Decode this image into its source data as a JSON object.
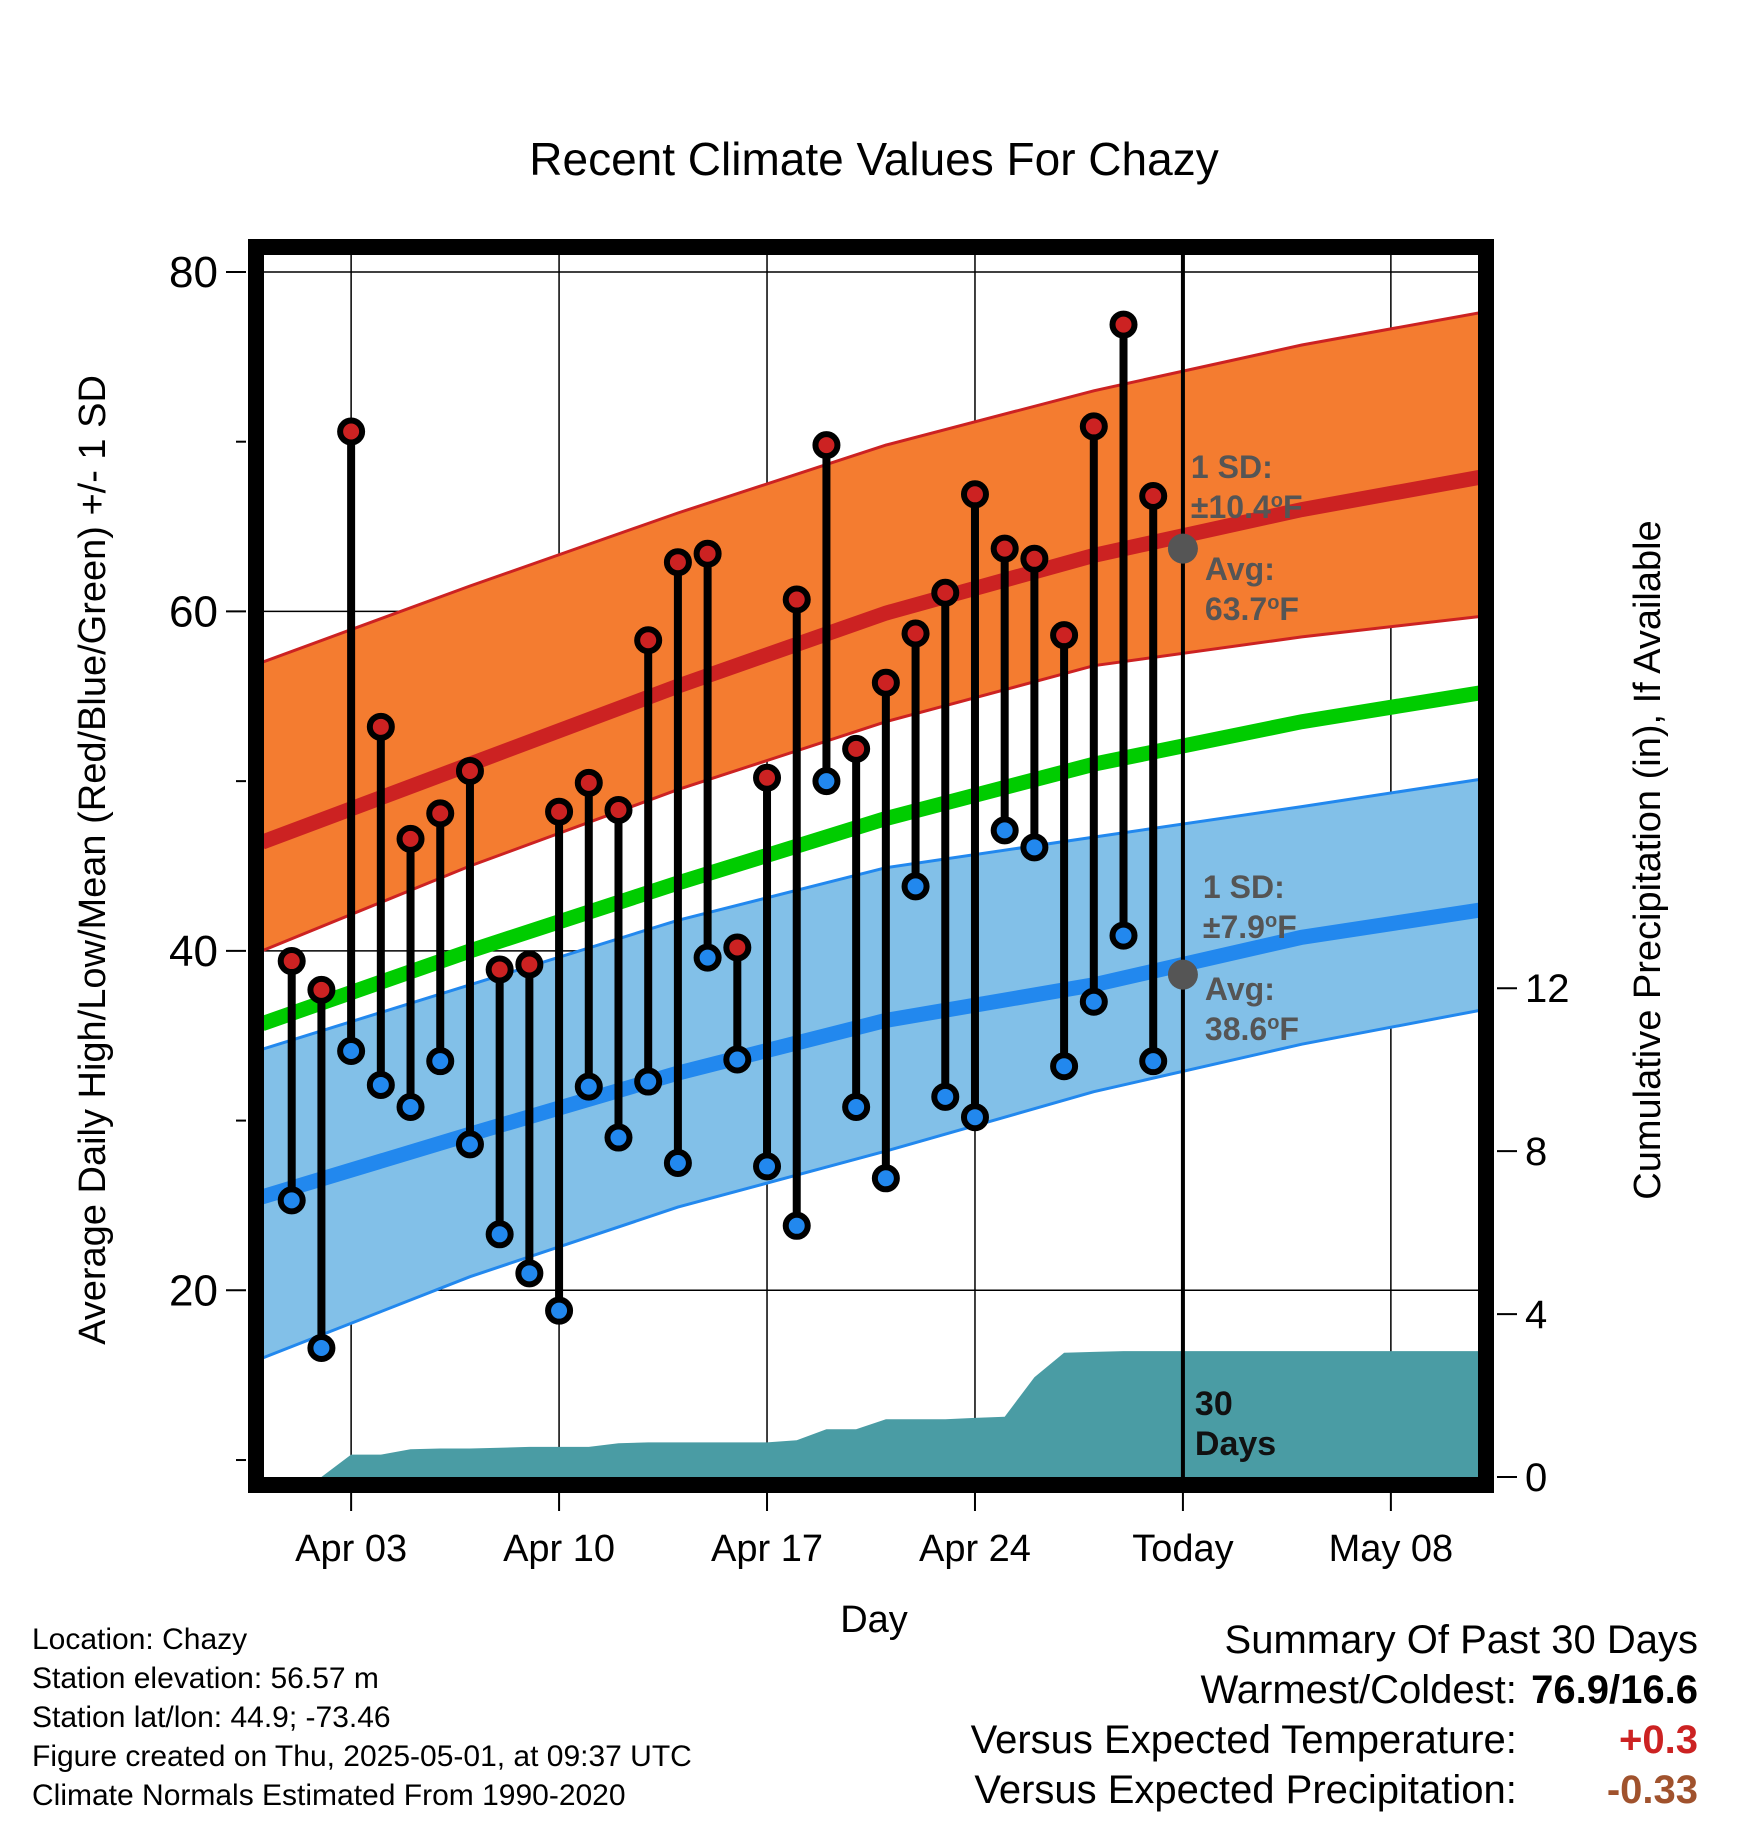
{
  "chart_data": {
    "type": "line",
    "title": "Recent Climate Values For Chazy",
    "xlabel": "Day",
    "ylabel_left": "Average Daily High/Low/Mean (Red/Blue/Green) +/- 1 SD",
    "ylabel_right": "Cumulative Precipitation (in), If Available",
    "x_range": [
      "2025-03-31",
      "2025-05-11"
    ],
    "ylim_left": [
      9,
      81
    ],
    "ylim_right": [
      0,
      30
    ],
    "grid": true,
    "x_ticks": [
      {
        "date": "2025-04-03",
        "label": "Apr 03"
      },
      {
        "date": "2025-04-10",
        "label": "Apr 10"
      },
      {
        "date": "2025-04-17",
        "label": "Apr 17"
      },
      {
        "date": "2025-04-24",
        "label": "Apr 24"
      },
      {
        "date": "2025-05-01",
        "label": "Today"
      },
      {
        "date": "2025-05-08",
        "label": "May 08"
      }
    ],
    "y_ticks_left": [
      20,
      40,
      60,
      80
    ],
    "y_ticks_right": [
      0,
      4,
      8,
      12
    ],
    "today": "2025-05-01",
    "normals": {
      "dates": [
        "2025-03-31",
        "2025-04-07",
        "2025-04-14",
        "2025-04-21",
        "2025-04-28",
        "2025-05-05",
        "2025-05-11"
      ],
      "high_mean": [
        46.4,
        51.0,
        55.6,
        59.9,
        63.3,
        66.0,
        67.9
      ],
      "high_upper": [
        57.0,
        61.5,
        65.8,
        69.8,
        73.0,
        75.7,
        77.6
      ],
      "high_lower": [
        40.0,
        45.0,
        49.5,
        53.5,
        56.8,
        58.5,
        59.7
      ],
      "mean": [
        35.7,
        40.0,
        44.0,
        47.8,
        51.0,
        53.5,
        55.2
      ],
      "low_mean": [
        25.5,
        29.2,
        32.8,
        35.9,
        38.0,
        40.8,
        42.4
      ],
      "low_upper": [
        34.2,
        38.0,
        41.8,
        44.9,
        46.7,
        48.5,
        50.1
      ],
      "low_lower": [
        16.0,
        20.8,
        24.9,
        28.2,
        31.7,
        34.5,
        36.5
      ]
    },
    "daily_dates": [
      "2025-04-01",
      "2025-04-02",
      "2025-04-03",
      "2025-04-04",
      "2025-04-05",
      "2025-04-06",
      "2025-04-07",
      "2025-04-08",
      "2025-04-09",
      "2025-04-10",
      "2025-04-11",
      "2025-04-12",
      "2025-04-13",
      "2025-04-14",
      "2025-04-15",
      "2025-04-16",
      "2025-04-17",
      "2025-04-18",
      "2025-04-19",
      "2025-04-20",
      "2025-04-21",
      "2025-04-22",
      "2025-04-23",
      "2025-04-24",
      "2025-04-25",
      "2025-04-26",
      "2025-04-27",
      "2025-04-28",
      "2025-04-29",
      "2025-04-30"
    ],
    "series": [
      {
        "name": "High",
        "color": "#cc2222",
        "values": [
          39.4,
          37.7,
          70.6,
          53.2,
          46.6,
          48.1,
          50.6,
          38.9,
          39.2,
          48.2,
          49.9,
          48.3,
          58.3,
          62.9,
          63.4,
          40.2,
          50.2,
          60.7,
          69.8,
          51.9,
          55.8,
          58.7,
          61.1,
          66.9,
          63.7,
          63.1,
          58.6,
          70.9,
          76.9,
          66.8
        ]
      },
      {
        "name": "Low",
        "color": "#2288ee",
        "values": [
          25.3,
          16.6,
          34.1,
          32.1,
          30.8,
          33.5,
          28.6,
          23.3,
          21.0,
          18.8,
          32.0,
          29.0,
          32.3,
          27.5,
          39.6,
          33.6,
          27.3,
          23.8,
          50.0,
          30.8,
          26.6,
          43.8,
          31.4,
          30.2,
          47.1,
          46.1,
          33.2,
          37.0,
          40.9,
          33.5
        ]
      }
    ],
    "precip": {
      "dates": [
        "2025-04-02",
        "2025-04-03",
        "2025-04-04",
        "2025-04-05",
        "2025-04-06",
        "2025-04-07",
        "2025-04-08",
        "2025-04-09",
        "2025-04-10",
        "2025-04-11",
        "2025-04-12",
        "2025-04-13",
        "2025-04-14",
        "2025-04-15",
        "2025-04-16",
        "2025-04-17",
        "2025-04-18",
        "2025-04-19",
        "2025-04-20",
        "2025-04-21",
        "2025-04-22",
        "2025-04-23",
        "2025-04-24",
        "2025-04-25",
        "2025-04-26",
        "2025-04-27",
        "2025-04-28",
        "2025-04-29",
        "2025-04-30",
        "2025-05-11"
      ],
      "values": [
        0.0,
        0.55,
        0.55,
        0.68,
        0.7,
        0.7,
        0.72,
        0.74,
        0.74,
        0.74,
        0.83,
        0.85,
        0.85,
        0.85,
        0.85,
        0.85,
        0.9,
        1.17,
        1.17,
        1.42,
        1.42,
        1.42,
        1.45,
        1.48,
        2.45,
        3.05,
        3.07,
        3.09,
        3.09,
        3.09
      ]
    },
    "annotations": {
      "high_sd_label": "1 SD:",
      "high_sd_value": "±10.4",
      "high_avg_label": "Avg:",
      "high_avg_value": "63.7",
      "low_sd_label": "1 SD:",
      "low_sd_value": "±7.9",
      "low_avg_label": "Avg:",
      "low_avg_value": "38.6",
      "degree_unit": "o",
      "unit_letter": "F",
      "days_line1": "30",
      "days_line2": "Days",
      "today_high_avg": 63.7,
      "today_low_avg": 38.6
    }
  },
  "footer": {
    "location": "Location: Chazy",
    "elevation": "Station elevation: 56.57 m",
    "latlon": "Station lat/lon: 44.9; -73.46",
    "created": "Figure created on Thu, 2025-05-01, at 09:37 UTC",
    "normals": "Climate Normals Estimated From 1990-2020"
  },
  "summary": {
    "title": "Summary Of Past 30 Days",
    "warm_cold_label": "Warmest/Coldest:",
    "warm_cold_value": "76.9/16.6",
    "temp_label": "Versus Expected Temperature:",
    "temp_value": "+0.3",
    "temp_color": "#cc2222",
    "precip_label": "Versus Expected Precipitation:",
    "precip_value": "-0.33",
    "precip_color": "#a0522d"
  },
  "colors": {
    "high_band": "#f47c30",
    "high_line": "#cc2222",
    "low_band": "#82c0e8",
    "low_line": "#2288ee",
    "mean_line": "#00cc00",
    "precip_fill": "#4a9ca4",
    "annotation_text": "#555555",
    "marker_high": "#cc2222",
    "marker_low": "#2288ee"
  }
}
